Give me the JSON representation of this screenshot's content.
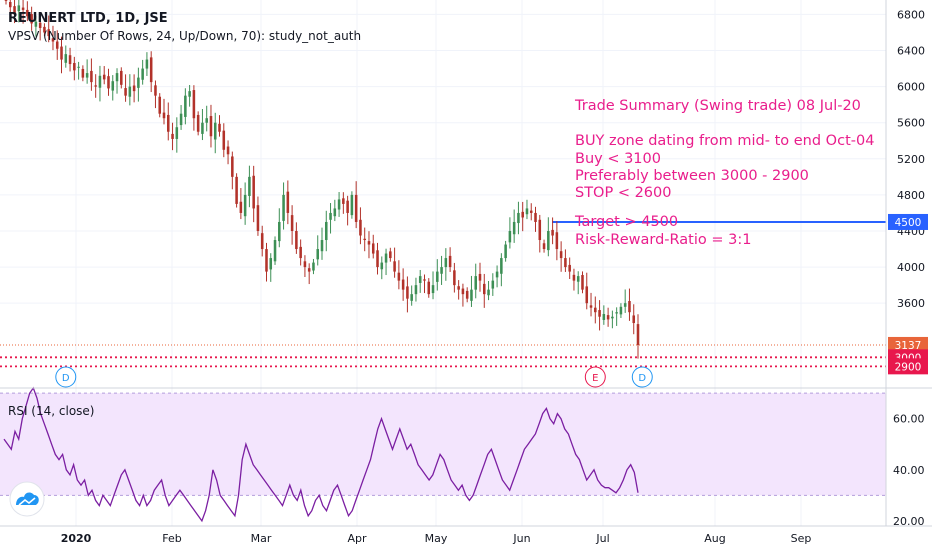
{
  "chart_data": [
    {
      "type": "candlestick",
      "title": "REUNERT LTD, 1D, JSE",
      "study": "VPSV (Number Of Rows, 24, Up/Down, 70): study_not_auth",
      "y_ticks": [
        3600,
        4000,
        4400,
        4800,
        5200,
        5600,
        6000,
        6400,
        6800
      ],
      "ylim": [
        2660,
        6960
      ],
      "x_ticks": [
        "2020",
        "Feb",
        "Mar",
        "Apr",
        "May",
        "Jun",
        "Jul",
        "Aug",
        "Sep"
      ],
      "close_series": [
        6950,
        6880,
        6800,
        6900,
        6850,
        6780,
        6700,
        6720,
        6650,
        6600,
        6560,
        6500,
        6420,
        6300,
        6360,
        6250,
        6180,
        6220,
        6100,
        6150,
        6050,
        6000,
        6120,
        6080,
        5980,
        6060,
        6150,
        6020,
        5900,
        6000,
        5950,
        6100,
        6200,
        6300,
        6050,
        5900,
        5700,
        5650,
        5500,
        5420,
        5550,
        5700,
        5900,
        5950,
        5650,
        5500,
        5600,
        5650,
        5450,
        5600,
        5500,
        5300,
        5250,
        5000,
        4700,
        4600,
        4800,
        5000,
        4650,
        4400,
        4200,
        3950,
        4100,
        4300,
        4500,
        4800,
        4600,
        4400,
        4200,
        4100,
        4000,
        3950,
        4050,
        4200,
        4300,
        4500,
        4600,
        4650,
        4750,
        4700,
        4600,
        4800,
        4500,
        4350,
        4300,
        4250,
        4150,
        4000,
        4050,
        4150,
        4100,
        3950,
        3850,
        3750,
        3650,
        3700,
        3800,
        3900,
        3850,
        3700,
        3800,
        3950,
        4000,
        4100,
        4000,
        3800,
        3750,
        3700,
        3650,
        3750,
        3900,
        3850,
        3700,
        3750,
        3850,
        3950,
        4100,
        4250,
        4400,
        4500,
        4600,
        4550,
        4650,
        4600,
        4500,
        4300,
        4200,
        4400,
        4350,
        4200,
        4100,
        4000,
        3950,
        3850,
        3900,
        3750,
        3600,
        3550,
        3500,
        3450,
        3480,
        3420,
        3450,
        3500,
        3560,
        3600,
        3500,
        3380,
        3137
      ],
      "annotations": [
        "Trade Summary (Swing trade) 08 Jul-20",
        "BUY zone dating from mid- to end Oct-04",
        "Buy < 3100",
        "Preferably between 3000 - 2900",
        "STOP < 2600",
        "Target > 4500",
        "Risk-Reward-Ratio = 3:1"
      ],
      "lines": [
        {
          "value": 4500,
          "label": "4500",
          "color": "#2962ff",
          "style": "solid"
        },
        {
          "value": 3137,
          "label": "3137",
          "color": "#e8653a",
          "style": "dotted"
        },
        {
          "value": 3000,
          "label": "3000",
          "color": "#e8174d",
          "style": "dotted"
        },
        {
          "value": 2900,
          "label": "2900",
          "color": "#e8174d",
          "style": "dotted"
        }
      ],
      "events": [
        {
          "label": "D",
          "color": "#2196f3",
          "index": 14
        },
        {
          "label": "E",
          "color": "#e8174d",
          "index": 138
        },
        {
          "label": "D",
          "color": "#2196f3",
          "index": 149
        }
      ],
      "colors": {
        "up": "#3d8f55",
        "down": "#b2322a"
      }
    },
    {
      "type": "line",
      "title": "RSI (14, close)",
      "y_ticks": [
        20.0,
        40.0,
        60.0
      ],
      "y_tick_labels": [
        "20.00",
        "40.00",
        "60.00"
      ],
      "ylim": [
        18,
        72
      ],
      "band": [
        30,
        70
      ],
      "series": [
        {
          "values": [
            52,
            50,
            48,
            55,
            52,
            60,
            65,
            70,
            72,
            68,
            62,
            58,
            54,
            50,
            46,
            44,
            46,
            40,
            38,
            42,
            36,
            34,
            36,
            30,
            32,
            28,
            26,
            30,
            28,
            26,
            30,
            34,
            38,
            40,
            36,
            32,
            28,
            26,
            30,
            26,
            28,
            32,
            34,
            36,
            30,
            26,
            28,
            30,
            32,
            30,
            28,
            26,
            24,
            22,
            20,
            24,
            30,
            40,
            36,
            30,
            28,
            26,
            24,
            22,
            30,
            44,
            50,
            46,
            42,
            40,
            38,
            36,
            34,
            32,
            30,
            28,
            26,
            30,
            34,
            30,
            28,
            32,
            26,
            22,
            24,
            28,
            30,
            26,
            24,
            28,
            32,
            34,
            30,
            26,
            22,
            24,
            28,
            32,
            36,
            40,
            44,
            50,
            56,
            60,
            56,
            52,
            48,
            52,
            56,
            52,
            48,
            50,
            46,
            42,
            40,
            38,
            36,
            38,
            42,
            46,
            44,
            40,
            36,
            34,
            32,
            34,
            30,
            28,
            30,
            34,
            38,
            42,
            46,
            48,
            44,
            40,
            36,
            34,
            32,
            36,
            40,
            44,
            48,
            50,
            52,
            54,
            58,
            62,
            64,
            60,
            58,
            62,
            60,
            56,
            54,
            50,
            46,
            44,
            40,
            36,
            38,
            40,
            36,
            34,
            33,
            33,
            32,
            31,
            33,
            36,
            40,
            42,
            39,
            31
          ],
          "color": "#7b1fa2"
        }
      ]
    }
  ],
  "ui": {
    "logo": "tradingview-cloud-icon"
  }
}
